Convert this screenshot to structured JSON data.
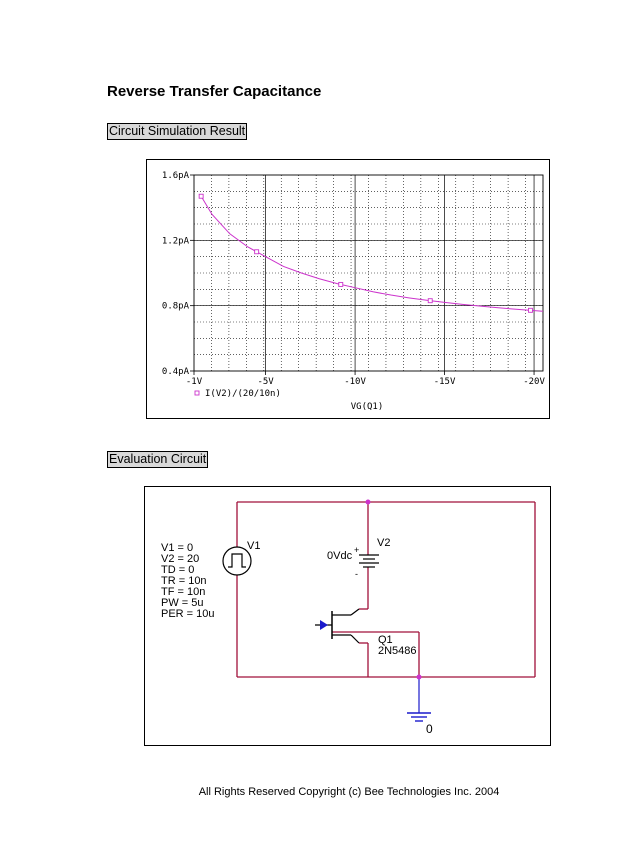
{
  "title": "Reverse Transfer Capacitance",
  "section_simulation": "Circuit Simulation Result",
  "section_evaluation": "Evaluation Circuit",
  "chart_data": {
    "type": "line",
    "xlabel": "VG(Q1)",
    "ylabel": "",
    "x_ticks": [
      "-1V",
      "-5V",
      "-10V",
      "-15V",
      "-20V"
    ],
    "y_ticks": [
      "1.6pA",
      "1.2pA",
      "0.8pA",
      "0.4pA"
    ],
    "xlim": [
      -1,
      -20.5
    ],
    "ylim": [
      0.4,
      1.6
    ],
    "grid": true,
    "legend_position": "bottom-left",
    "series": [
      {
        "name": "I(V2)/(20/10n)",
        "color": "#cc33cc",
        "x": [
          -1.4,
          -2,
          -3,
          -4,
          -5,
          -6,
          -7,
          -8,
          -9,
          -10,
          -11,
          -12,
          -13,
          -14,
          -15,
          -16,
          -17,
          -18,
          -19,
          -20,
          -20.5
        ],
        "y": [
          1.47,
          1.36,
          1.24,
          1.16,
          1.1,
          1.04,
          1.0,
          0.965,
          0.935,
          0.91,
          0.885,
          0.865,
          0.848,
          0.833,
          0.82,
          0.808,
          0.797,
          0.787,
          0.778,
          0.77,
          0.766
        ]
      }
    ],
    "marker_x": [
      -1.4,
      -4.5,
      -9.2,
      -14.2,
      -19.8
    ]
  },
  "circuit": {
    "v1_params": [
      "V1 = 0",
      "V2 = 20",
      "TD = 0",
      "TR = 10n",
      "TF = 10n",
      "PW = 5u",
      "PER = 10u"
    ],
    "v1_label": "V1",
    "v2_label": "V2",
    "v2_value": "0Vdc",
    "plus_sign": "+",
    "minus_sign": "-",
    "q1_label": "Q1",
    "q1_part": "2N5486",
    "ground_label": "0",
    "wire_color": "#a0103a",
    "node_color": "#cc33cc",
    "ground_color": "#1a1acc"
  },
  "footer": "All Rights Reserved Copyright (c) Bee Technologies Inc. 2004"
}
